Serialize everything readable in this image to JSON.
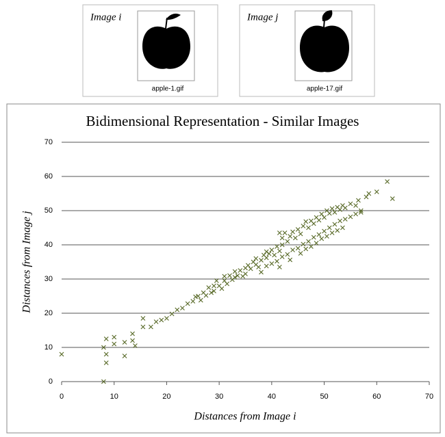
{
  "images": [
    {
      "label": "Image i",
      "file": "apple-1.gif"
    },
    {
      "label": "Image j",
      "file": "apple-17.gif"
    }
  ],
  "chart_data": {
    "type": "scatter",
    "title": "Bidimensional Representation - Similar Images",
    "x_label": "Distances from Image i",
    "y_label": "Distances from Image j",
    "color": "#5a6b2a",
    "grid": true,
    "xlim": [
      0,
      70
    ],
    "ylim": [
      0,
      70
    ],
    "xticks": [
      0,
      10,
      20,
      30,
      40,
      50,
      60,
      70
    ],
    "yticks": [
      0,
      10,
      20,
      30,
      40,
      50,
      60,
      70
    ],
    "x": [
      0,
      8,
      8,
      8.5,
      8.5,
      8.5,
      10,
      10,
      12,
      12,
      13.5,
      13.5,
      15.5,
      15.5,
      14,
      17,
      18,
      19,
      62,
      63,
      20,
      21,
      22,
      23,
      24,
      25,
      25.5,
      26,
      26.5,
      27,
      27.5,
      28,
      28.5,
      29,
      29,
      29.5,
      30,
      30.5,
      31,
      31,
      31.5,
      32,
      32.5,
      33,
      33,
      33.5,
      34,
      34.5,
      35,
      35,
      35.5,
      36,
      36.5,
      37,
      37,
      37.5,
      38,
      38.5,
      39,
      39,
      39.5,
      40,
      40.5,
      41,
      41.5,
      42,
      42,
      42.5,
      43,
      43.5,
      44,
      44.5,
      45,
      45.5,
      46,
      46.5,
      47,
      47.5,
      48,
      48.5,
      49,
      49.5,
      50,
      50.5,
      51,
      51.5,
      52,
      52.5,
      53,
      53.5,
      54,
      55,
      56,
      56.5,
      57,
      58,
      58.5,
      60,
      38,
      39,
      40,
      41,
      41.5,
      42,
      43,
      43.5,
      44,
      45,
      45.5,
      46,
      46.5,
      47,
      47.5,
      48,
      48.5,
      49,
      49.5,
      50,
      50.5,
      51,
      51.5,
      52,
      52.5,
      53,
      53.5,
      54,
      55,
      56,
      57,
      41.5
    ],
    "values": [
      8,
      0,
      10,
      12.5,
      8,
      5.5,
      13,
      11,
      7.5,
      11.5,
      12,
      14,
      18.5,
      16,
      10.5,
      16,
      17.5,
      18,
      58.5,
      53.5,
      18.5,
      19.8,
      21,
      21.5,
      22.8,
      23.5,
      24.8,
      25,
      23.8,
      26,
      25.2,
      27.5,
      26,
      28,
      26.5,
      29.5,
      28,
      27.2,
      29.5,
      30.8,
      28.6,
      31,
      29.8,
      30.5,
      32.2,
      31,
      32.5,
      30.8,
      33.2,
      31.5,
      34,
      33,
      35,
      34.2,
      36,
      33.5,
      35.5,
      37,
      36.2,
      38,
      37.4,
      38.5,
      37,
      39.5,
      38.2,
      40,
      42,
      43.5,
      41,
      42.5,
      43.8,
      42,
      44.5,
      43.2,
      45.5,
      46.8,
      45,
      47,
      46.2,
      48,
      47.2,
      49,
      48,
      50,
      49.2,
      50.6,
      49.5,
      51,
      50.3,
      51.5,
      50.8,
      52,
      51.5,
      53,
      50,
      54,
      55,
      55.5,
      32,
      33.8,
      34.5,
      35.2,
      33.5,
      36.5,
      37.2,
      35.6,
      38.5,
      39,
      37.5,
      40.2,
      38.8,
      41,
      39.5,
      42.2,
      40.5,
      43,
      41.8,
      44,
      42.5,
      45,
      43.5,
      46,
      44.2,
      47,
      45,
      47.5,
      48.2,
      49,
      49.5,
      43.5
    ]
  }
}
